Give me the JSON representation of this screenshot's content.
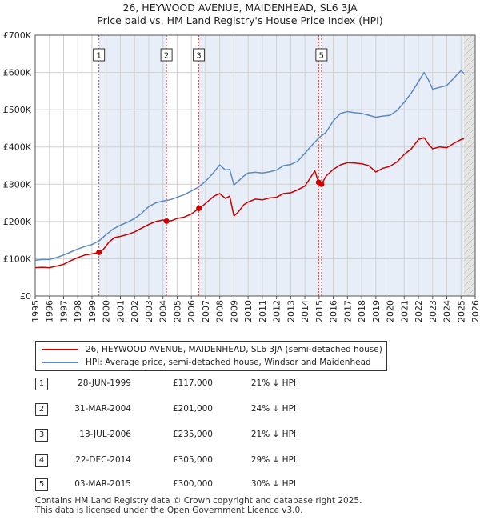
{
  "title_line1": "26, HEYWOOD AVENUE, MAIDENHEAD, SL6 3JA",
  "title_line2": "Price paid vs. HM Land Registry's House Price Index (HPI)",
  "chart_data": {
    "type": "line",
    "title": "26, HEYWOOD AVENUE, MAIDENHEAD, SL6 3JA — Price paid vs. HM Land Registry's House Price Index (HPI)",
    "xlabel": "",
    "ylabel": "",
    "xlim": [
      1995,
      2026
    ],
    "ylim": [
      0,
      700000
    ],
    "x_ticks": [
      "1995",
      "1996",
      "1997",
      "1998",
      "1999",
      "2000",
      "2001",
      "2002",
      "2003",
      "2004",
      "2005",
      "2006",
      "2007",
      "2008",
      "2009",
      "2010",
      "2011",
      "2012",
      "2013",
      "2014",
      "2015",
      "2016",
      "2017",
      "2018",
      "2019",
      "2020",
      "2021",
      "2022",
      "2023",
      "2024",
      "2025",
      "2026"
    ],
    "y_ticks": [
      {
        "value": 0,
        "label": "£0"
      },
      {
        "value": 100000,
        "label": "£100K"
      },
      {
        "value": 200000,
        "label": "£200K"
      },
      {
        "value": 300000,
        "label": "£300K"
      },
      {
        "value": 400000,
        "label": "£400K"
      },
      {
        "value": 500000,
        "label": "£500K"
      },
      {
        "value": 600000,
        "label": "£600K"
      },
      {
        "value": 700000,
        "label": "£700K"
      }
    ],
    "grid": true,
    "future_shading_from": 2025.2,
    "series": [
      {
        "name": "26, HEYWOOD AVENUE, MAIDENHEAD, SL6 3JA (semi-detached house)",
        "color": "#cc0000",
        "x": [
          1995.0,
          1995.5,
          1996.0,
          1996.5,
          1997.0,
          1997.5,
          1998.0,
          1998.5,
          1999.0,
          1999.49,
          1999.8,
          2000.2,
          2000.6,
          2001.0,
          2001.5,
          2002.0,
          2002.5,
          2003.0,
          2003.5,
          2004.0,
          2004.25,
          2004.6,
          2005.0,
          2005.5,
          2006.0,
          2006.53,
          2006.8,
          2007.2,
          2007.6,
          2008.0,
          2008.4,
          2008.7,
          2009.0,
          2009.3,
          2009.7,
          2010.0,
          2010.5,
          2011.0,
          2011.5,
          2012.0,
          2012.5,
          2013.0,
          2013.5,
          2014.0,
          2014.4,
          2014.7,
          2014.97,
          2015.17,
          2015.5,
          2016.0,
          2016.5,
          2017.0,
          2017.5,
          2018.0,
          2018.5,
          2019.0,
          2019.5,
          2020.0,
          2020.5,
          2021.0,
          2021.5,
          2022.0,
          2022.4,
          2022.7,
          2023.0,
          2023.5,
          2024.0,
          2024.5,
          2025.0,
          2025.2
        ],
        "y": [
          76000,
          77000,
          76000,
          80000,
          85000,
          95000,
          103000,
          110000,
          113000,
          117000,
          125000,
          145000,
          157000,
          160000,
          165000,
          172000,
          182000,
          192000,
          200000,
          204000,
          201000,
          202000,
          208000,
          212000,
          220000,
          235000,
          242000,
          255000,
          268000,
          275000,
          262000,
          268000,
          215000,
          225000,
          245000,
          252000,
          260000,
          258000,
          263000,
          265000,
          275000,
          277000,
          285000,
          295000,
          318000,
          336000,
          305000,
          300000,
          322000,
          340000,
          352000,
          358000,
          357000,
          355000,
          350000,
          333000,
          343000,
          348000,
          360000,
          380000,
          395000,
          420000,
          425000,
          408000,
          395000,
          400000,
          398000,
          410000,
          420000,
          422000
        ]
      },
      {
        "name": "HPI: Average price, semi-detached house, Windsor and Maidenhead",
        "color": "#5b8ac6",
        "x": [
          1995.0,
          1995.5,
          1996.0,
          1996.5,
          1997.0,
          1997.5,
          1998.0,
          1998.5,
          1999.0,
          1999.5,
          2000.0,
          2000.5,
          2001.0,
          2001.5,
          2002.0,
          2002.5,
          2003.0,
          2003.5,
          2004.0,
          2004.5,
          2005.0,
          2005.5,
          2006.0,
          2006.5,
          2007.0,
          2007.5,
          2008.0,
          2008.4,
          2008.7,
          2009.0,
          2009.3,
          2009.7,
          2010.0,
          2010.5,
          2011.0,
          2011.5,
          2012.0,
          2012.5,
          2013.0,
          2013.5,
          2014.0,
          2014.5,
          2015.0,
          2015.5,
          2016.0,
          2016.5,
          2017.0,
          2017.5,
          2018.0,
          2018.5,
          2019.0,
          2019.5,
          2020.0,
          2020.5,
          2021.0,
          2021.5,
          2022.0,
          2022.4,
          2022.7,
          2023.0,
          2023.5,
          2024.0,
          2024.5,
          2025.0,
          2025.2
        ],
        "y": [
          96000,
          98000,
          98000,
          103000,
          110000,
          118000,
          126000,
          133000,
          138000,
          148000,
          165000,
          180000,
          190000,
          198000,
          208000,
          222000,
          240000,
          250000,
          255000,
          258000,
          265000,
          272000,
          282000,
          292000,
          308000,
          328000,
          352000,
          338000,
          340000,
          298000,
          308000,
          322000,
          330000,
          332000,
          330000,
          333000,
          338000,
          350000,
          353000,
          362000,
          383000,
          405000,
          425000,
          440000,
          470000,
          490000,
          495000,
          492000,
          490000,
          485000,
          480000,
          483000,
          485000,
          498000,
          520000,
          545000,
          575000,
          600000,
          580000,
          555000,
          560000,
          565000,
          585000,
          605000,
          598000
        ]
      }
    ],
    "sale_markers": [
      {
        "label": "1",
        "x": 1999.49,
        "y": 117000
      },
      {
        "label": "2",
        "x": 2004.25,
        "y": 201000
      },
      {
        "label": "3",
        "x": 2006.53,
        "y": 235000
      },
      {
        "label": "4",
        "x": 2014.97,
        "y": 305000
      },
      {
        "label": "5",
        "x": 2015.17,
        "y": 300000
      }
    ]
  },
  "legend": {
    "red_label": "26, HEYWOOD AVENUE, MAIDENHEAD, SL6 3JA (semi-detached house)",
    "blue_label": "HPI: Average price, semi-detached house, Windsor and Maidenhead",
    "red_color": "#cc0000",
    "blue_color": "#5b8ac6"
  },
  "sales": [
    {
      "num": "1",
      "date": "28-JUN-1999",
      "price": "£117,000",
      "hpi": "21% ↓ HPI"
    },
    {
      "num": "2",
      "date": "31-MAR-2004",
      "price": "£201,000",
      "hpi": "24% ↓ HPI"
    },
    {
      "num": "3",
      "date": "13-JUL-2006",
      "price": "£235,000",
      "hpi": "21% ↓ HPI"
    },
    {
      "num": "4",
      "date": "22-DEC-2014",
      "price": "£305,000",
      "hpi": "29% ↓ HPI"
    },
    {
      "num": "5",
      "date": "03-MAR-2015",
      "price": "£300,000",
      "hpi": "30% ↓ HPI"
    }
  ],
  "footer_line1": "Contains HM Land Registry data © Crown copyright and database right 2025.",
  "footer_line2": "This data is licensed under the Open Government Licence v3.0."
}
